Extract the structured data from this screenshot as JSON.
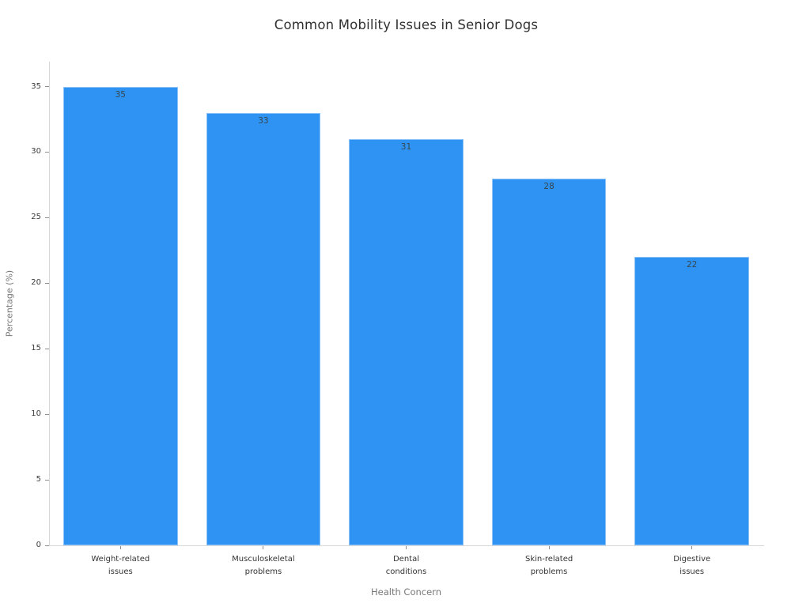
{
  "page": {
    "background": "#ffffff"
  },
  "chart_data": {
    "type": "bar",
    "title": "Common Mobility Issues in Senior Dogs",
    "xlabel": "Health Concern",
    "ylabel": "Percentage (%)",
    "categories": [
      "Weight-related\nissues",
      "Musculoskeletal\nproblems",
      "Dental\nconditions",
      "Skin-related\nproblems",
      "Digestive\nissues"
    ],
    "values": [
      35,
      33,
      31,
      28,
      22
    ],
    "bar_labels": [
      "35",
      "33",
      "31",
      "28",
      "22"
    ],
    "yticks": [
      0,
      5,
      10,
      15,
      20,
      25,
      30,
      35
    ],
    "ylim": [
      0,
      36.9
    ],
    "grid": false,
    "legend_position": "none",
    "colors": {
      "bar_fill": "#2E93F2",
      "axis_line": "#d8d8d8",
      "tick_mark": "#8f8f8f",
      "tick_text": "#3b3b3b",
      "category_text": "#343434",
      "axis_title_text": "#777777",
      "title_text": "#303030",
      "value_label_text": "#37474f"
    }
  }
}
